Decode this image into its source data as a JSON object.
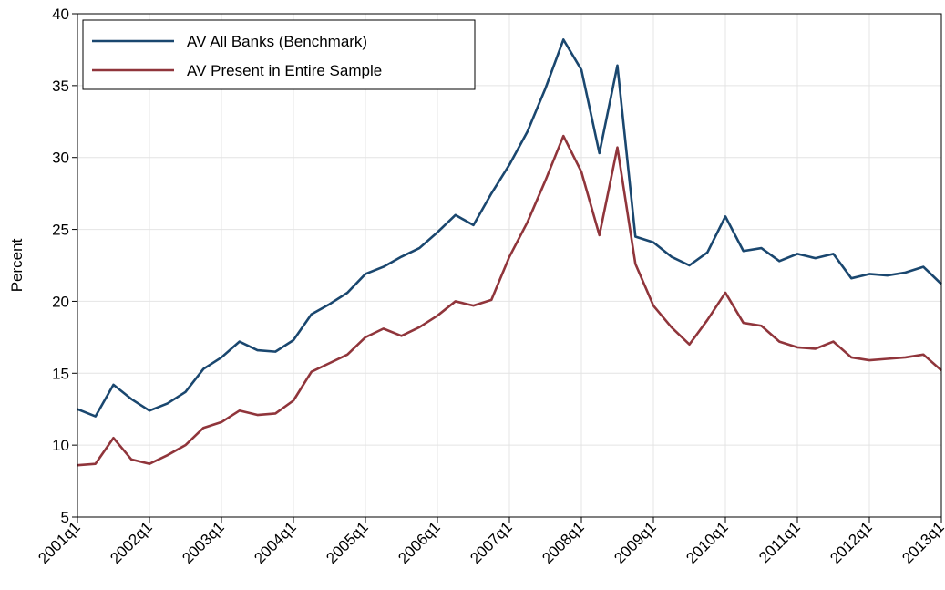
{
  "chart_data": {
    "type": "line",
    "ylabel": "Percent",
    "categories": [
      "2001q1",
      null,
      null,
      null,
      "2002q1",
      null,
      null,
      null,
      "2003q1",
      null,
      null,
      null,
      "2004q1",
      null,
      null,
      null,
      "2005q1",
      null,
      null,
      null,
      "2006q1",
      null,
      null,
      null,
      "2007q1",
      null,
      null,
      null,
      "2008q1",
      null,
      null,
      null,
      "2009q1",
      null,
      null,
      null,
      "2010q1",
      null,
      null,
      null,
      "2011q1",
      null,
      null,
      null,
      "2012q1",
      null,
      null,
      null,
      "2013q1"
    ],
    "series": [
      {
        "name": "AV All Banks (Benchmark)",
        "color": "#1a476f",
        "values": [
          12.5,
          12.0,
          14.2,
          13.2,
          12.4,
          12.9,
          13.7,
          15.3,
          16.1,
          17.2,
          16.6,
          16.5,
          17.3,
          19.1,
          19.8,
          20.6,
          21.9,
          22.4,
          23.1,
          23.7,
          24.8,
          26.0,
          25.3,
          27.5,
          29.5,
          31.8,
          34.8,
          38.2,
          36.1,
          30.3,
          36.4,
          24.5,
          24.1,
          23.1,
          22.5,
          23.4,
          25.9,
          23.5,
          23.7,
          22.8,
          23.3,
          23.0,
          23.3,
          21.6,
          21.9,
          21.8,
          22.0,
          22.4,
          21.2
        ]
      },
      {
        "name": "AV Present in Entire Sample",
        "color": "#90353b",
        "values": [
          8.6,
          8.7,
          10.5,
          9.0,
          8.7,
          9.3,
          10.0,
          11.2,
          11.6,
          12.4,
          12.1,
          12.2,
          13.1,
          15.1,
          15.7,
          16.3,
          17.5,
          18.1,
          17.6,
          18.2,
          19.0,
          20.0,
          19.7,
          20.1,
          23.1,
          25.5,
          28.4,
          31.5,
          29.0,
          24.6,
          30.7,
          22.6,
          19.7,
          18.2,
          17.0,
          18.7,
          20.6,
          18.5,
          18.3,
          17.2,
          16.8,
          16.7,
          17.2,
          16.1,
          15.9,
          16.0,
          16.1,
          16.3,
          15.2
        ]
      }
    ],
    "ylim": [
      5,
      40
    ],
    "yticks": [
      5,
      10,
      15,
      20,
      25,
      30,
      35,
      40
    ],
    "grid": true,
    "legend": "upper left"
  }
}
